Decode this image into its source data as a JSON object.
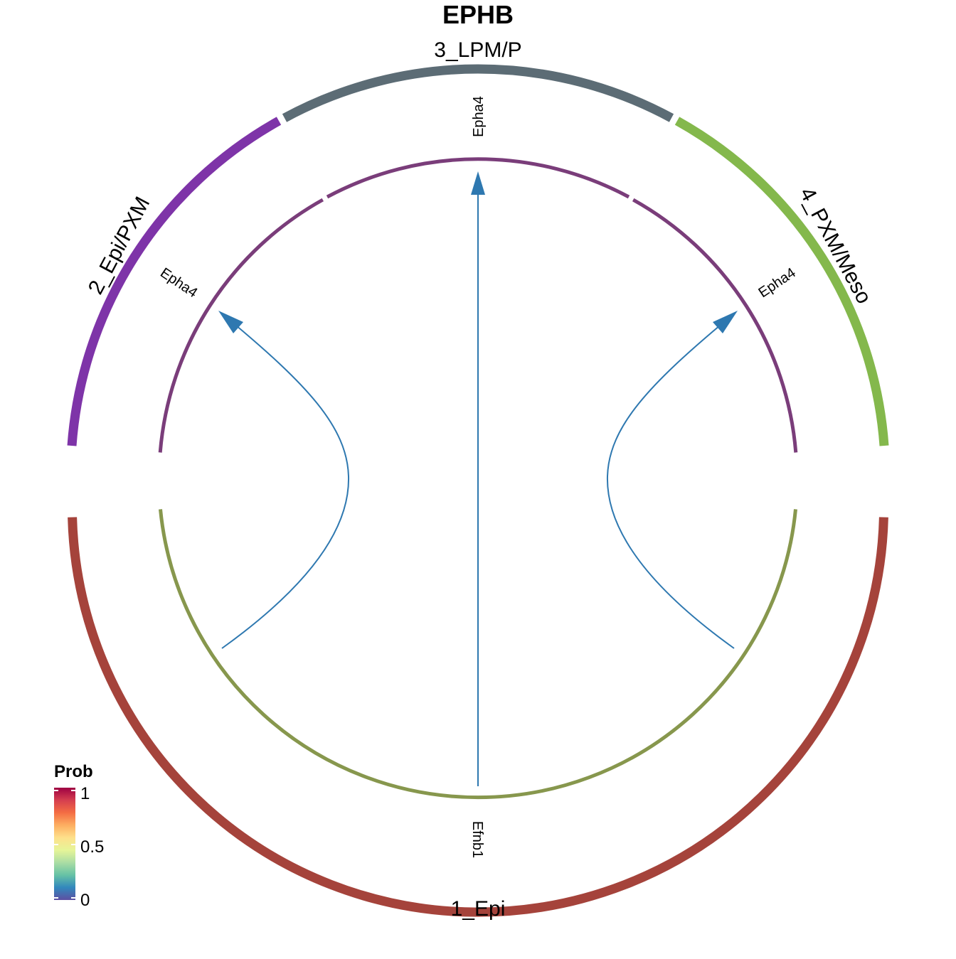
{
  "title": "EPHB",
  "groups": [
    {
      "id": "g1",
      "label": "1_Epi",
      "color": "#A5433B"
    },
    {
      "id": "g2",
      "label": "2_Epi/PXM",
      "color": "#7E34A8"
    },
    {
      "id": "g3",
      "label": "3_LPM/P",
      "color": "#5C6C75"
    },
    {
      "id": "g4",
      "label": "4_PXM/Meso",
      "color": "#84B84C"
    }
  ],
  "genes": [
    {
      "id": "gene-efnb1",
      "label": "Efnb1",
      "color": "#87974D",
      "group": "1_Epi"
    },
    {
      "id": "gene-epha4-epipxm",
      "label": "Epha4",
      "color": "#7A3D7A",
      "group": "2_Epi/PXM"
    },
    {
      "id": "gene-epha4-lpmp",
      "label": "Epha4",
      "color": "#7A3D7A",
      "group": "3_LPM/P"
    },
    {
      "id": "gene-epha4-pxmmeso",
      "label": "Epha4",
      "color": "#7A3D7A",
      "group": "4_PXM/Meso"
    }
  ],
  "links": [
    {
      "source": "Efnb1",
      "source_group": "1_Epi",
      "target": "Epha4",
      "target_group": "2_Epi/PXM",
      "color": "#2E78B0"
    },
    {
      "source": "Efnb1",
      "source_group": "1_Epi",
      "target": "Epha4",
      "target_group": "3_LPM/P",
      "color": "#2E78B0"
    },
    {
      "source": "Efnb1",
      "source_group": "1_Epi",
      "target": "Epha4",
      "target_group": "4_PXM/Meso",
      "color": "#2E78B0"
    }
  ],
  "legend": {
    "title": "Prob",
    "ticks": [
      "1",
      "0.5",
      "0"
    ],
    "colors": [
      "#9E0142",
      "#D53E4F",
      "#F46D43",
      "#FDAE61",
      "#FEE08B",
      "#E6F598",
      "#ABDDA4",
      "#66C2A5",
      "#3288BD",
      "#5E4FA2"
    ]
  }
}
